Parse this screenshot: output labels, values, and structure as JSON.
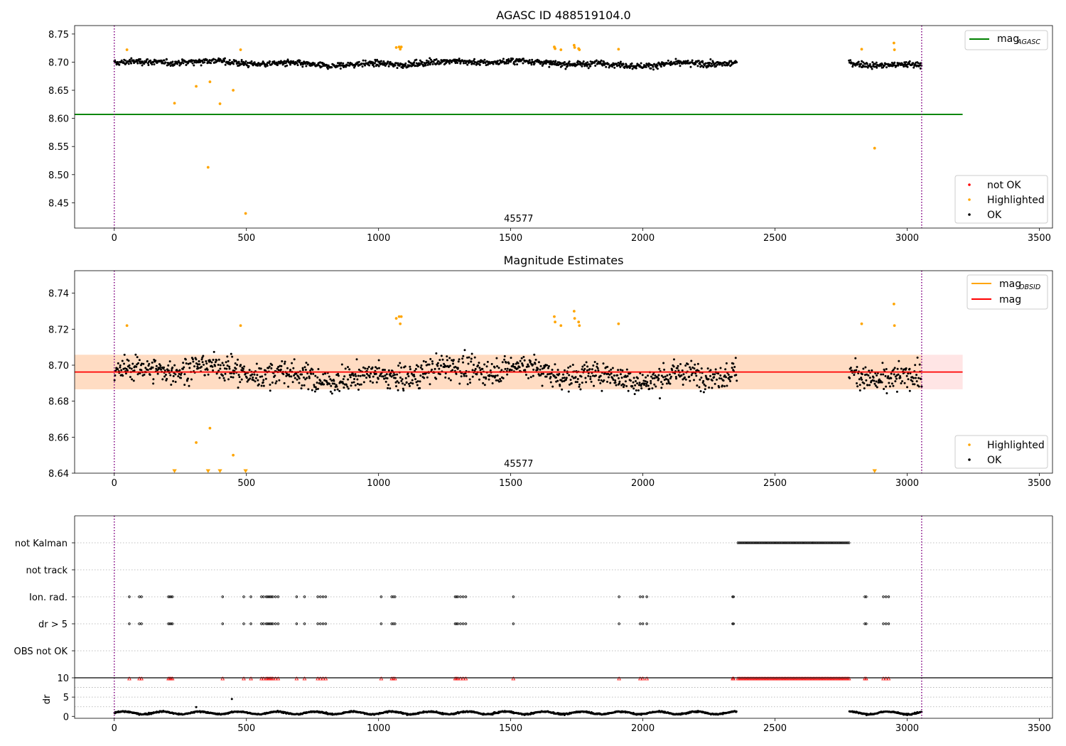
{
  "chart_data": [
    {
      "type": "scatter",
      "title": "AGASC ID 488519104.0",
      "xlim": [
        -150,
        3550
      ],
      "ylim": [
        8.405,
        8.765
      ],
      "xticks": [
        0,
        500,
        1000,
        1500,
        2000,
        2500,
        3000,
        3500
      ],
      "yticks": [
        "8.45",
        "8.50",
        "8.55",
        "8.60",
        "8.65",
        "8.70",
        "8.75"
      ],
      "annotation": "45577",
      "vlines": [
        0,
        3055
      ],
      "hline": {
        "name": "mag",
        "subscript": "AGASC",
        "value": 8.607,
        "x_start": -150,
        "x_end": 3210,
        "color": "#008000"
      },
      "ok_series": {
        "name": "OK",
        "color": "#000000",
        "segments": [
          [
            0,
            2355,
            8.698
          ],
          [
            2780,
            3055,
            8.697
          ]
        ],
        "spread": 0.007
      },
      "highlighted_series": {
        "name": "Highlighted",
        "color": "#ffa500",
        "points": [
          [
            48,
            8.722
          ],
          [
            228,
            8.627
          ],
          [
            310,
            8.657
          ],
          [
            355,
            8.513
          ],
          [
            362,
            8.665
          ],
          [
            400,
            8.626
          ],
          [
            450,
            8.65
          ],
          [
            478,
            8.722
          ],
          [
            497,
            8.431
          ],
          [
            1067,
            8.726
          ],
          [
            1078,
            8.727
          ],
          [
            1082,
            8.723
          ],
          [
            1086,
            8.727
          ],
          [
            1665,
            8.727
          ],
          [
            1668,
            8.724
          ],
          [
            1690,
            8.722
          ],
          [
            1740,
            8.73
          ],
          [
            1742,
            8.726
          ],
          [
            1757,
            8.724
          ],
          [
            1760,
            8.722
          ],
          [
            1908,
            8.723
          ],
          [
            2828,
            8.723
          ],
          [
            2877,
            8.547
          ],
          [
            2950,
            8.734
          ],
          [
            2952,
            8.722
          ]
        ]
      },
      "not_ok_series": {
        "name": "not OK",
        "color": "#ff0000"
      },
      "legend_upper": [
        "mag"
      ],
      "legend_lower": [
        "not OK",
        "Highlighted",
        "OK"
      ]
    },
    {
      "type": "scatter",
      "title": "Magnitude Estimates",
      "xlim": [
        -150,
        3550
      ],
      "ylim": [
        8.64,
        8.7525
      ],
      "xticks": [
        0,
        500,
        1000,
        1500,
        2000,
        2500,
        3000,
        3500
      ],
      "yticks": [
        "8.64",
        "8.66",
        "8.68",
        "8.70",
        "8.72",
        "8.74"
      ],
      "annotation": "45577",
      "vlines": [
        0,
        3055
      ],
      "mag_line": {
        "name": "mag",
        "value": 8.6962,
        "color": "#ff0000"
      },
      "mag_band": [
        8.6866,
        8.7058
      ],
      "obsid_band": [
        8.6866,
        8.7058
      ],
      "band_x_end": 3210,
      "obsid_line": {
        "name": "mag",
        "subscript": "OBSID",
        "color": "#ffa500"
      },
      "ok_series": {
        "name": "OK",
        "color": "#000000",
        "segments": [
          [
            0,
            2355,
            8.6955
          ],
          [
            2780,
            3055,
            8.6945
          ]
        ],
        "spread": 0.009
      },
      "highlighted_series": {
        "name": "Highlighted",
        "color": "#ffa500",
        "points": [
          [
            48,
            8.722
          ],
          [
            310,
            8.657
          ],
          [
            362,
            8.665
          ],
          [
            450,
            8.65
          ],
          [
            478,
            8.722
          ],
          [
            1067,
            8.726
          ],
          [
            1078,
            8.727
          ],
          [
            1082,
            8.723
          ],
          [
            1086,
            8.727
          ],
          [
            1665,
            8.727
          ],
          [
            1668,
            8.724
          ],
          [
            1690,
            8.722
          ],
          [
            1740,
            8.73
          ],
          [
            1742,
            8.726
          ],
          [
            1757,
            8.724
          ],
          [
            1760,
            8.722
          ],
          [
            1908,
            8.723
          ],
          [
            2828,
            8.723
          ],
          [
            2950,
            8.734
          ],
          [
            2952,
            8.722
          ]
        ],
        "clipped_x": [
          228,
          355,
          400,
          497,
          2877
        ]
      },
      "legend_upper": [
        "mag OBSID",
        "mag"
      ],
      "legend_lower": [
        "Highlighted",
        "OK"
      ]
    },
    {
      "type": "scatter",
      "title": "",
      "xlim": [
        -150,
        3550
      ],
      "categories": [
        "not Kalman",
        "not track",
        "Ion. rad.",
        "dr > 5",
        "OBS not OK"
      ],
      "vlines": [
        0,
        3055
      ],
      "not_kalman_range": [
        2360,
        2780
      ],
      "flag_x": [
        57,
        95,
        103,
        205,
        210,
        215,
        220,
        410,
        490,
        517,
        557,
        565,
        575,
        580,
        585,
        590,
        595,
        600,
        610,
        620,
        690,
        720,
        770,
        780,
        790,
        800,
        1010,
        1050,
        1056,
        1062,
        1290,
        1295,
        1300,
        1310,
        1320,
        1330,
        1510,
        1910,
        1990,
        2000,
        2015,
        2340,
        2343,
        2840,
        2845,
        2910,
        2920,
        2930
      ]
    },
    {
      "type": "scatter",
      "title": "",
      "xlabel": "",
      "ylabel": "dr",
      "xlim": [
        -150,
        3550
      ],
      "ylim": [
        -0.5,
        10
      ],
      "xticks": [
        0,
        500,
        1000,
        1500,
        2000,
        2500,
        3000,
        3500
      ],
      "yticks": [
        "0",
        "5",
        "10"
      ],
      "vlines": [
        0,
        3055
      ],
      "clip_value": 10,
      "clipped_x": [
        57,
        95,
        103,
        205,
        210,
        215,
        220,
        410,
        490,
        517,
        557,
        565,
        575,
        580,
        585,
        590,
        595,
        600,
        610,
        620,
        690,
        720,
        770,
        780,
        790,
        800,
        1010,
        1050,
        1056,
        1062,
        1290,
        1295,
        1300,
        1310,
        1320,
        1330,
        1510,
        1910,
        1990,
        2000,
        2015,
        2340,
        2343,
        2840,
        2845,
        2910,
        2920,
        2930
      ],
      "clipped_range": [
        2360,
        2780
      ],
      "outliers": [
        [
          310,
          2.4
        ],
        [
          445,
          4.5
        ]
      ],
      "ok_segments": [
        [
          0,
          2355
        ],
        [
          2780,
          3055
        ]
      ],
      "ok_level": 0.9
    }
  ]
}
